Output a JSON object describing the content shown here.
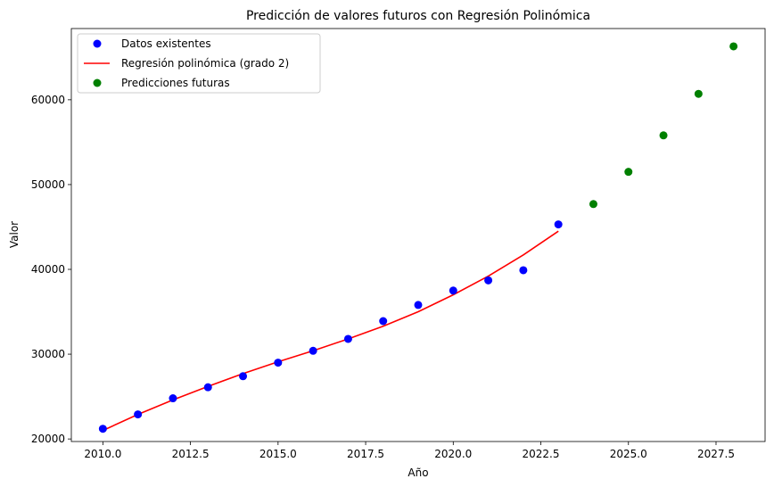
{
  "chart_data": {
    "type": "scatter",
    "title": "Predicción de valores futuros con Regresión Polinómica",
    "xlabel": "Año",
    "ylabel": "Valor",
    "xlim": [
      2009.1,
      2028.9
    ],
    "ylim": [
      19700,
      68400
    ],
    "x_ticks": [
      2010.0,
      2012.5,
      2015.0,
      2017.5,
      2020.0,
      2022.5,
      2025.0,
      2027.5
    ],
    "x_tick_labels": [
      "2010.0",
      "2012.5",
      "2015.0",
      "2017.5",
      "2020.0",
      "2022.5",
      "2025.0",
      "2027.5"
    ],
    "y_ticks": [
      20000,
      30000,
      40000,
      50000,
      60000
    ],
    "y_tick_labels": [
      "20000",
      "30000",
      "40000",
      "50000",
      "60000"
    ],
    "grid": false,
    "legend_position": "top-left",
    "series": [
      {
        "name": "Datos existentes",
        "kind": "scatter",
        "color": "#0000ff",
        "x": [
          2010,
          2011,
          2012,
          2013,
          2014,
          2015,
          2016,
          2017,
          2018,
          2019,
          2020,
          2021,
          2022,
          2023
        ],
        "y": [
          21200,
          22900,
          24800,
          26100,
          27400,
          29000,
          30400,
          31800,
          33900,
          35800,
          37500,
          38700,
          39900,
          45300
        ]
      },
      {
        "name": "Regresión polinómica (grado 2)",
        "kind": "line",
        "color": "#ff0000",
        "x": [
          2010,
          2011,
          2012,
          2013,
          2014,
          2015,
          2016,
          2017,
          2018,
          2019,
          2020,
          2021,
          2022,
          2023
        ],
        "y": [
          21000,
          22900,
          24600,
          26200,
          27700,
          29100,
          30400,
          31800,
          33300,
          35000,
          37000,
          39200,
          41700,
          44500
        ]
      },
      {
        "name": "Predicciones futuras",
        "kind": "scatter",
        "color": "#008000",
        "x": [
          2024,
          2025,
          2026,
          2027,
          2028
        ],
        "y": [
          47700,
          51500,
          55800,
          60700,
          66300
        ]
      }
    ]
  }
}
